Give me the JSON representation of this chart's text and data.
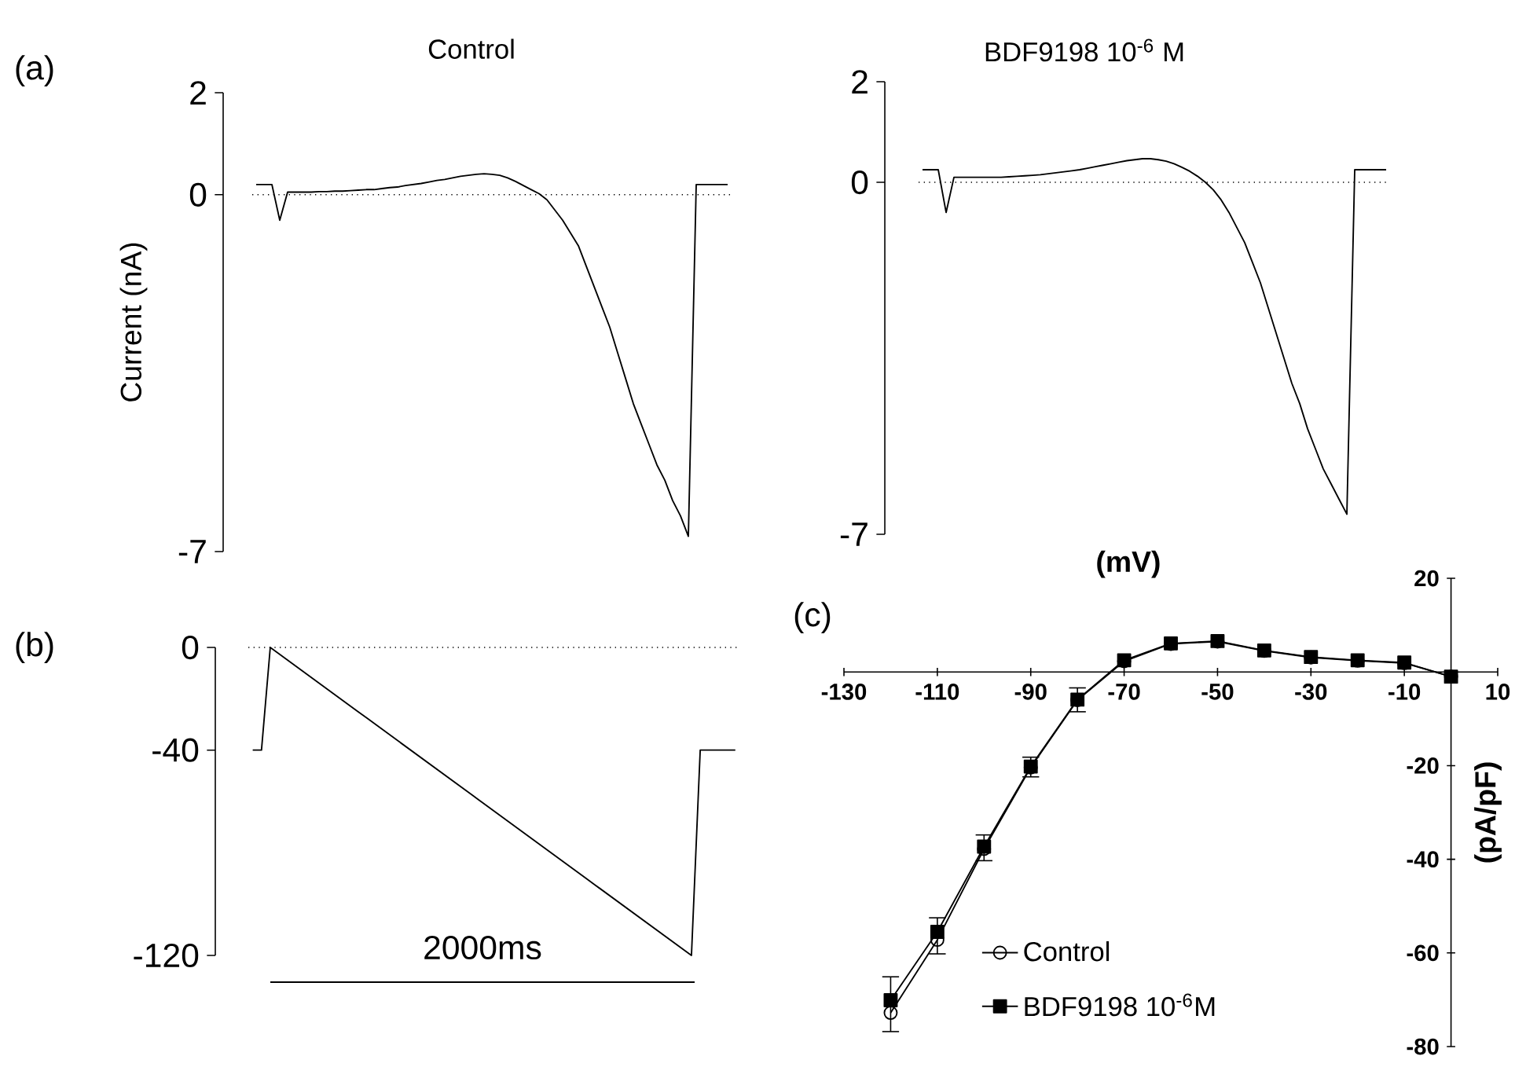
{
  "chart_data": [
    {
      "type": "line",
      "title": "Control",
      "ylabel": "Current (nA)",
      "annotations": [
        "(a)"
      ],
      "tick_labels": "y",
      "ylim": [
        -7,
        2
      ],
      "yticks": [
        -7,
        0,
        2
      ],
      "ref_lines": [
        {
          "axis": "y",
          "value": 0,
          "line_style": "dotted"
        }
      ],
      "categories": [
        null,
        null,
        null,
        null,
        null,
        null,
        null,
        null,
        null,
        null,
        null,
        null,
        null,
        null,
        null,
        null,
        null,
        null,
        null,
        null,
        null,
        null,
        null,
        null,
        null,
        null,
        null,
        null,
        null,
        null,
        null,
        null,
        null,
        null,
        null,
        null,
        null,
        null,
        null,
        null,
        null,
        null,
        null,
        null,
        null,
        null,
        null,
        null,
        null,
        null,
        null,
        null,
        null,
        null,
        null,
        null,
        null,
        null,
        null,
        null,
        null
      ],
      "series": [
        {
          "color": "#000000",
          "values": [
            0.2,
            0.2,
            0.2,
            -0.5,
            0.05,
            0.05,
            0.05,
            0.05,
            0.06,
            0.06,
            0.07,
            0.07,
            0.08,
            0.09,
            0.1,
            0.1,
            0.12,
            0.14,
            0.15,
            0.18,
            0.2,
            0.22,
            0.25,
            0.28,
            0.3,
            0.33,
            0.36,
            0.38,
            0.4,
            0.41,
            0.4,
            0.38,
            0.33,
            0.26,
            0.18,
            0.1,
            0.02,
            -0.1,
            -0.3,
            -0.5,
            -0.75,
            -1.0,
            -1.4,
            -1.8,
            -2.2,
            -2.6,
            -3.1,
            -3.6,
            -4.1,
            -4.5,
            -4.9,
            -5.3,
            -5.6,
            -6.0,
            -6.3,
            -6.7,
            0.2,
            0.2,
            0.2,
            0.2,
            0.2
          ]
        }
      ]
    },
    {
      "type": "line",
      "title": "BDF9198 10$^{-6}$ M",
      "tick_labels": "y",
      "ylim": [
        -7,
        2
      ],
      "yticks": [
        -7,
        0,
        2
      ],
      "ref_lines": [
        {
          "axis": "y",
          "value": 0,
          "line_style": "dotted"
        }
      ],
      "categories": [
        null,
        null,
        null,
        null,
        null,
        null,
        null,
        null,
        null,
        null,
        null,
        null,
        null,
        null,
        null,
        null,
        null,
        null,
        null,
        null,
        null,
        null,
        null,
        null,
        null,
        null,
        null,
        null,
        null,
        null,
        null,
        null,
        null,
        null,
        null,
        null,
        null,
        null,
        null,
        null,
        null,
        null,
        null,
        null,
        null,
        null,
        null,
        null,
        null,
        null,
        null,
        null,
        null,
        null,
        null,
        null,
        null,
        null,
        null,
        null
      ],
      "series": [
        {
          "color": "#000000",
          "values": [
            0.25,
            0.25,
            0.25,
            -0.6,
            0.1,
            0.1,
            0.1,
            0.1,
            0.1,
            0.1,
            0.1,
            0.11,
            0.12,
            0.13,
            0.14,
            0.15,
            0.17,
            0.19,
            0.21,
            0.23,
            0.25,
            0.28,
            0.31,
            0.34,
            0.37,
            0.4,
            0.43,
            0.45,
            0.47,
            0.47,
            0.45,
            0.42,
            0.37,
            0.3,
            0.22,
            0.12,
            0.0,
            -0.15,
            -0.35,
            -0.6,
            -0.9,
            -1.2,
            -1.6,
            -2.0,
            -2.5,
            -3.0,
            -3.5,
            -4.0,
            -4.4,
            -4.9,
            -5.3,
            -5.7,
            -6.0,
            -6.3,
            -6.6,
            0.25,
            0.25,
            0.25,
            0.25,
            0.25
          ]
        }
      ]
    },
    {
      "type": "line",
      "annotations": [
        "(b)",
        "2000ms"
      ],
      "tick_labels": "y",
      "ylim": [
        -120,
        0
      ],
      "yticks": [
        -120,
        -40,
        0
      ],
      "ref_lines": [
        {
          "axis": "y",
          "value": 0,
          "line_style": "dotted"
        }
      ],
      "categories": [
        null,
        null,
        null,
        null,
        null,
        null,
        null,
        null,
        null,
        null,
        null,
        null,
        null,
        null,
        null,
        null,
        null,
        null,
        null,
        null,
        null,
        null,
        null,
        null,
        null,
        null,
        null,
        null,
        null,
        null,
        null,
        null,
        null,
        null,
        null,
        null,
        null,
        null,
        null,
        null,
        null,
        null,
        null,
        null,
        null,
        null,
        null,
        null,
        null,
        null,
        null,
        null,
        null,
        null,
        null,
        null
      ],
      "series": [
        {
          "color": "#000000",
          "values": [
            -40,
            -40,
            0,
            -2.5,
            -5,
            -7.5,
            -10,
            -12.5,
            -15,
            -17.5,
            -20,
            -22.5,
            -25,
            -27.5,
            -30,
            -32.5,
            -35,
            -37.5,
            -40,
            -42.5,
            -45,
            -47.5,
            -50,
            -52.5,
            -55,
            -57.5,
            -60,
            -62.5,
            -65,
            -67.5,
            -70,
            -72.5,
            -75,
            -77.5,
            -80,
            -82.5,
            -85,
            -87.5,
            -90,
            -92.5,
            -95,
            -97.5,
            -100,
            -102.5,
            -105,
            -107.5,
            -110,
            -112.5,
            -115,
            -117.5,
            -120,
            -40,
            -40,
            -40,
            -40,
            -40
          ]
        }
      ]
    },
    {
      "type": "line",
      "xlabel": "(mV)",
      "ylabel": "(pA/pF)",
      "annotations": [
        "(c)"
      ],
      "legend": "bottom left",
      "line_style": "solid",
      "xlim": [
        -130,
        10
      ],
      "xticks": [
        -130,
        -110,
        -90,
        -70,
        -50,
        -30,
        -10,
        10
      ],
      "ylim": [
        -80,
        20
      ],
      "yticks": [
        -80,
        -60,
        -40,
        -20,
        20
      ],
      "x": [
        -120,
        -110,
        -100,
        -90,
        -80,
        -70,
        -60,
        -50,
        -40,
        -30,
        -20,
        -10,
        0
      ],
      "series": [
        {
          "name": "Control",
          "color": "#000000",
          "marker": "circle",
          "values": [
            -72.8,
            -57.2,
            -37.8,
            -20.4,
            -6,
            2.3,
            6,
            6.5,
            4.5,
            3.1,
            2.4,
            1.9,
            -1
          ]
        },
        {
          "name": "BDF9198 10$^{-6}$M",
          "color": "#000000",
          "marker": "square",
          "values": [
            -70.1,
            -55.5,
            -37.3,
            -20.2,
            -5.9,
            2.5,
            6.1,
            6.6,
            4.6,
            3.2,
            2.5,
            2,
            -1
          ],
          "errors": [
            [
              -76.8,
              -65.1
            ],
            [
              -60.2,
              -52.5
            ],
            [
              -40.3,
              -34.8
            ],
            [
              -22.4,
              -18.2
            ],
            [
              -8.5,
              -3.4
            ],
            null,
            null,
            null,
            null,
            null,
            null,
            null,
            null
          ]
        }
      ]
    }
  ]
}
